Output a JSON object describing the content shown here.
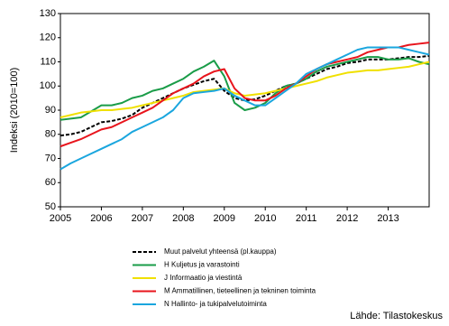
{
  "chart_data": {
    "type": "line",
    "y_label": "Indeksi (2010=100)",
    "source": "Lähde: Tilastokeskus",
    "x": [
      2005,
      2005.25,
      2005.5,
      2005.75,
      2006,
      2006.25,
      2006.5,
      2006.75,
      2007,
      2007.25,
      2007.5,
      2007.75,
      2008,
      2008.25,
      2008.5,
      2008.75,
      2009,
      2009.25,
      2009.5,
      2009.75,
      2010,
      2010.25,
      2010.5,
      2010.75,
      2011,
      2011.25,
      2011.5,
      2011.75,
      2012,
      2012.25,
      2012.5,
      2012.75,
      2013,
      2013.25,
      2013.5,
      2013.75,
      2014
    ],
    "xlim": [
      2005,
      2014
    ],
    "xticks": [
      2005,
      2006,
      2007,
      2008,
      2009,
      2010,
      2011,
      2012,
      2013
    ],
    "ylim": [
      50,
      130
    ],
    "yticks": [
      50,
      60,
      70,
      80,
      90,
      100,
      110,
      120,
      130
    ],
    "grid": false,
    "series": [
      {
        "name": "Muut palvelut yhteensä (pl.kauppa)",
        "color": "#000000",
        "linestyle": "dashed",
        "values": [
          79.5,
          80,
          81,
          83,
          85,
          85.5,
          86.5,
          88,
          91,
          93,
          95,
          97,
          99,
          100.5,
          102,
          103,
          98,
          95,
          94,
          94.5,
          96,
          98,
          100,
          101,
          103,
          105,
          107,
          108,
          109.5,
          110,
          111,
          111,
          111,
          111.5,
          112,
          112,
          112.5
        ]
      },
      {
        "name": "H Kuljetus ja varastointi",
        "color": "#1a9c48",
        "linestyle": "solid",
        "values": [
          86,
          86.5,
          87,
          89.5,
          92,
          92,
          93,
          95,
          96,
          98,
          99,
          101,
          103,
          106,
          108,
          110.5,
          104,
          93,
          90,
          91,
          93,
          97,
          100,
          101,
          103,
          106,
          108,
          109,
          110,
          111,
          112,
          112,
          111,
          111,
          111.5,
          110,
          109
        ]
      },
      {
        "name": "J Informaatio ja viestintä",
        "color": "#f0e000",
        "linestyle": "solid",
        "values": [
          87,
          88,
          89,
          89.5,
          90,
          90,
          90.5,
          91,
          92,
          93,
          94,
          95,
          96,
          97.5,
          98,
          98.5,
          99,
          97,
          96,
          96.5,
          97,
          98,
          99,
          100,
          101,
          102,
          103.5,
          104.5,
          105.5,
          106,
          106.5,
          106.5,
          107,
          107.5,
          108,
          109,
          110
        ]
      },
      {
        "name": "M Ammatillinen, tieteellinen ja tekninen toiminta",
        "color": "#e8141c",
        "linestyle": "solid",
        "values": [
          75,
          76.5,
          78,
          80,
          82,
          83,
          85,
          87,
          89,
          91,
          94,
          97,
          99,
          101,
          104,
          106,
          107,
          99,
          95,
          94,
          94,
          96,
          99,
          101,
          104,
          107,
          109,
          110,
          111,
          112,
          114,
          115,
          116,
          116,
          117,
          117.5,
          118
        ]
      },
      {
        "name": "N Hallinto- ja tukipalvelutoiminta",
        "color": "#1aa6de",
        "linestyle": "solid",
        "values": [
          65.5,
          68,
          70,
          72,
          74,
          76,
          78,
          81,
          83,
          85,
          87,
          90,
          95,
          97,
          97.5,
          98,
          99,
          96,
          94,
          92,
          92,
          95,
          98,
          101,
          105,
          107,
          109,
          111,
          113,
          115,
          116,
          116,
          116,
          116,
          115,
          114,
          113
        ]
      }
    ]
  }
}
